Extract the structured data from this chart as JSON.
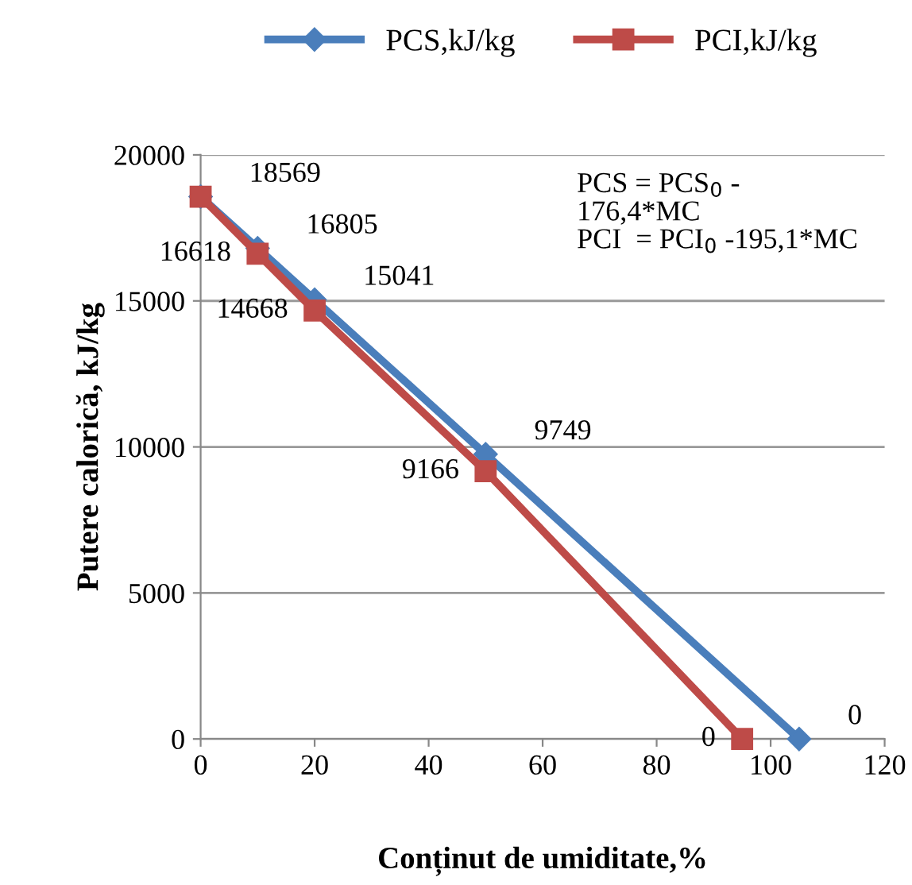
{
  "chart_data": {
    "type": "line",
    "xlabel": "Conținut de umiditate,%",
    "ylabel": "Putere calorică, kJ/kg",
    "xlim": [
      0,
      120
    ],
    "xticks": [
      0,
      20,
      40,
      60,
      80,
      100,
      120
    ],
    "ylim": [
      0,
      20000
    ],
    "yticks": [
      0,
      5000,
      10000,
      15000,
      20000
    ],
    "grid": "y",
    "legend": "top",
    "annotations": [
      "PCS = PCS$_{0}$ -\n176,4*MC\nPCI  = PCI$_{0}$ -195,1*MC"
    ],
    "series": [
      {
        "name": "PCS,kJ/kg",
        "color": "#4a7ebb",
        "marker": "diamond",
        "x": [
          0,
          10,
          20,
          50,
          105
        ],
        "values": [
          18569,
          16805,
          15041,
          9749,
          0
        ],
        "value_labels": [
          "18569",
          "16805",
          "15041",
          "9749",
          "0"
        ]
      },
      {
        "name": "PCI,kJ/kg",
        "color": "#be4b48",
        "marker": "square",
        "x": [
          0,
          10,
          20,
          50,
          95
        ],
        "values": [
          18569,
          16618,
          14668,
          9166,
          0
        ],
        "value_labels": [
          null,
          "16618",
          "14668",
          "9166",
          "0"
        ]
      }
    ]
  }
}
